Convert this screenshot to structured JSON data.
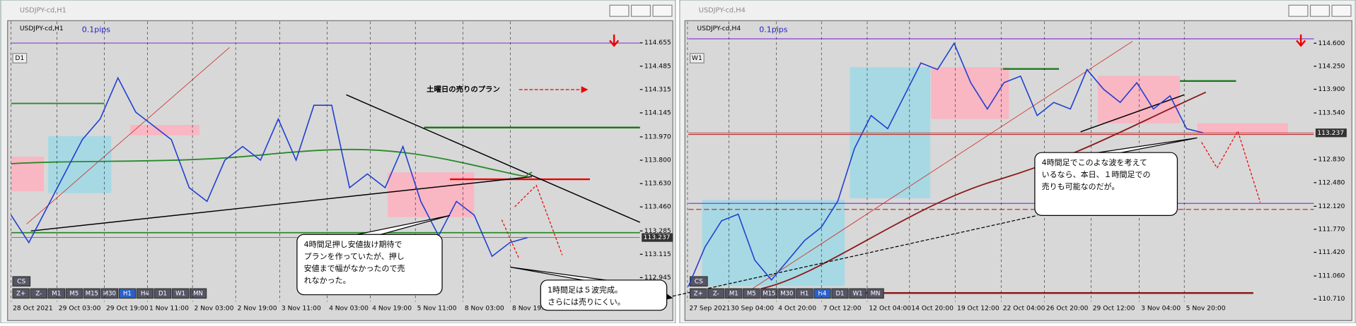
{
  "windows": [
    {
      "title": "USDJPY-cd,H1",
      "symbol": "USDJPY-cd,H1",
      "pips": "0.1pips",
      "timeframe_button": "D1",
      "cs_button": "CS",
      "toolbar": [
        "Z+",
        "Z-",
        "M1",
        "M5",
        "M15",
        "M30",
        "H1",
        "H4",
        "D1",
        "W1",
        "MN"
      ],
      "active_button": "H1",
      "chart": {
        "type": "line",
        "color": "#1f3fd0",
        "ylim": [
          112.77,
          114.81
        ],
        "yticks": [
          114.655,
          114.485,
          114.315,
          114.145,
          {
            "value": 113.97,
            "label": "113.970"
          },
          {
            "value": 113.8,
            "label": "113.800"
          },
          {
            "value": 113.63,
            "label": "113.630"
          },
          {
            "value": 113.46,
            "label": "113.460"
          },
          113.285,
          113.115,
          112.945
        ],
        "current_price": 113.237,
        "categories": [
          "28 Oct 2021",
          "29 Oct 03:00",
          "29 Oct 19:00",
          "1 Nov 11:00",
          "2 Nov 03:00",
          "2 Nov 19:00",
          "3 Nov 11:00",
          "4 Nov 03:00",
          "4 Nov 19:00",
          "5 Nov 11:00",
          "8 Nov 03:00",
          "8 Nov 19:00"
        ],
        "values": [
          113.4,
          113.2,
          113.45,
          113.7,
          113.95,
          114.1,
          114.4,
          114.15,
          114.05,
          113.95,
          113.6,
          113.5,
          113.8,
          113.9,
          113.8,
          114.1,
          113.8,
          114.2,
          114.2,
          113.6,
          113.7,
          113.6,
          113.9,
          113.5,
          113.25,
          113.5,
          113.4,
          113.1,
          113.2,
          113.237
        ]
      },
      "plan_label": "土曜日の売りのプラン",
      "callouts": [
        [
          "4時間足押し安値抜け期待で",
          "プランを作っていたが、押し",
          "安値まで幅がなかったので売",
          "れなかった。"
        ],
        [
          "1時間足は５波完成。",
          "さらには売りにくい。"
        ]
      ]
    },
    {
      "title": "USDJPY-cd,H4",
      "symbol": "USDJPY-cd,H4",
      "pips": "0.1pips",
      "timeframe_button": "W1",
      "cs_button": "CS",
      "toolbar": [
        "Z+",
        "Z-",
        "M1",
        "M5",
        "M15",
        "M30",
        "H1",
        "H4",
        "D1",
        "W1",
        "MN"
      ],
      "active_button": "H4",
      "chart": {
        "type": "line",
        "color": "#1f3fd0",
        "ylim": [
          110.67,
          114.93
        ],
        "yticks": [
          {
            "value": 114.6,
            "label": "114.600"
          },
          {
            "value": 114.25,
            "label": "114.250"
          },
          {
            "value": 113.9,
            "label": "113.900"
          },
          {
            "value": 113.54,
            "label": "113.540"
          },
          {
            "value": 112.83,
            "label": "112.830"
          },
          {
            "value": 112.48,
            "label": "112.480"
          },
          {
            "value": 112.12,
            "label": "112.120"
          },
          {
            "value": 111.77,
            "label": "111.770"
          },
          {
            "value": 111.42,
            "label": "111.420"
          },
          {
            "value": 111.06,
            "label": "111.060"
          },
          {
            "value": 110.71,
            "label": "110.710"
          }
        ],
        "current_price": 113.237,
        "categories": [
          "27 Sep 2021",
          "30 Sep 04:00",
          "4 Oct 20:00",
          "7 Oct 12:00",
          "12 Oct 04:00",
          "14 Oct 20:00",
          "19 Oct 12:00",
          "22 Oct 04:00",
          "26 Oct 20:00",
          "29 Oct 12:00",
          "3 Nov 04:00",
          "5 Nov 20:00"
        ],
        "values": [
          110.9,
          111.5,
          111.9,
          112.0,
          111.3,
          111.0,
          111.3,
          111.6,
          111.8,
          112.2,
          113.0,
          113.5,
          113.3,
          113.8,
          114.3,
          114.2,
          114.6,
          114.0,
          113.6,
          114.0,
          114.1,
          113.5,
          113.7,
          113.6,
          114.2,
          113.9,
          113.7,
          114.0,
          113.6,
          113.8,
          113.3,
          113.237
        ]
      },
      "callouts": [
        [
          "4時間足でこのよな波を考えて",
          "いるなら、本日、１時間足での",
          "売りも可能なのだが。"
        ]
      ]
    }
  ]
}
